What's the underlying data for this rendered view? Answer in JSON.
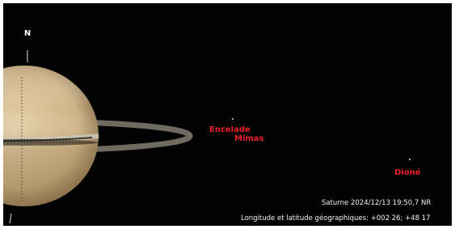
{
  "compass": "N",
  "moons": [
    {
      "label": "Encelade"
    },
    {
      "label": "Mimas"
    },
    {
      "label": "Dioné"
    }
  ],
  "footer": {
    "line1": "Saturne 2024/12/13 19:50,7 NR",
    "line2": "Longitude et latitude géographiques: +002 26; +48 17"
  }
}
